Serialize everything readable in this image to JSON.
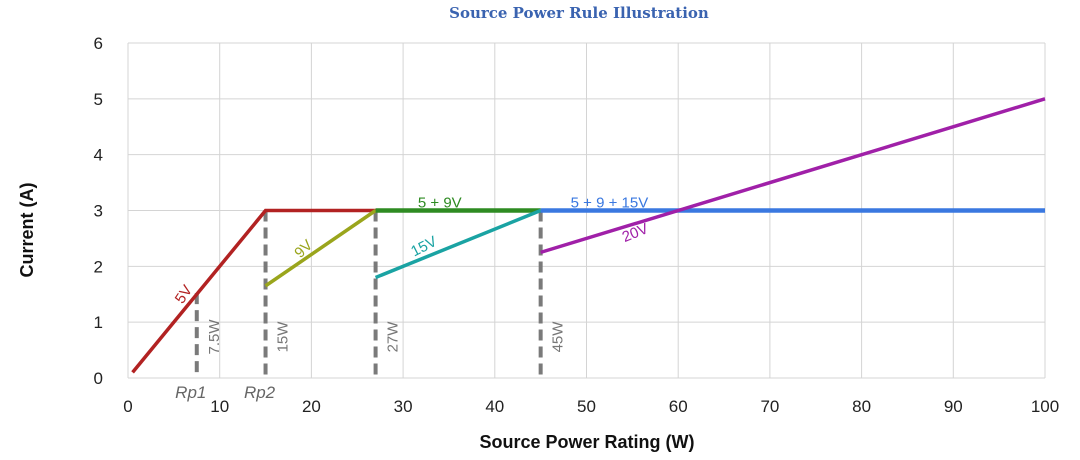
{
  "chart_data": {
    "type": "line",
    "title": "Source Power Rule Illustration",
    "xlabel": "Source Power Rating (W)",
    "ylabel": "Current (A)",
    "xlim": [
      0,
      100
    ],
    "ylim": [
      0,
      6
    ],
    "xticks": [
      "0",
      "10",
      "20",
      "30",
      "40",
      "50",
      "60",
      "70",
      "80",
      "90",
      "100"
    ],
    "yticks": [
      "0",
      "1",
      "2",
      "3",
      "4",
      "5",
      "6"
    ],
    "grid": true,
    "series": [
      {
        "name": "5V",
        "color": "#b22222",
        "points": [
          [
            0.5,
            0.1
          ],
          [
            15,
            3
          ],
          [
            27,
            3
          ]
        ]
      },
      {
        "name": "9V",
        "color": "#9aa51c",
        "points": [
          [
            15,
            1.65
          ],
          [
            27,
            3
          ]
        ]
      },
      {
        "name": "5 + 9V",
        "color": "#2e8b22",
        "points": [
          [
            27,
            3
          ],
          [
            45,
            3
          ]
        ]
      },
      {
        "name": "15V",
        "color": "#1aa3a3",
        "points": [
          [
            27,
            1.8
          ],
          [
            45,
            3
          ]
        ]
      },
      {
        "name": "5 + 9 + 15V",
        "color": "#3a78e0",
        "points": [
          [
            45,
            3
          ],
          [
            100,
            3
          ]
        ]
      },
      {
        "name": "20V",
        "color": "#a020a8",
        "points": [
          [
            45,
            2.25
          ],
          [
            100,
            5
          ]
        ]
      }
    ],
    "markers": [
      {
        "x": 7.5,
        "label": "7.5W",
        "sublabel": "Rp1"
      },
      {
        "x": 15,
        "label": "15W",
        "sublabel": "Rp2"
      },
      {
        "x": 27,
        "label": "27W",
        "sublabel": ""
      },
      {
        "x": 45,
        "label": "45W",
        "sublabel": ""
      }
    ]
  }
}
